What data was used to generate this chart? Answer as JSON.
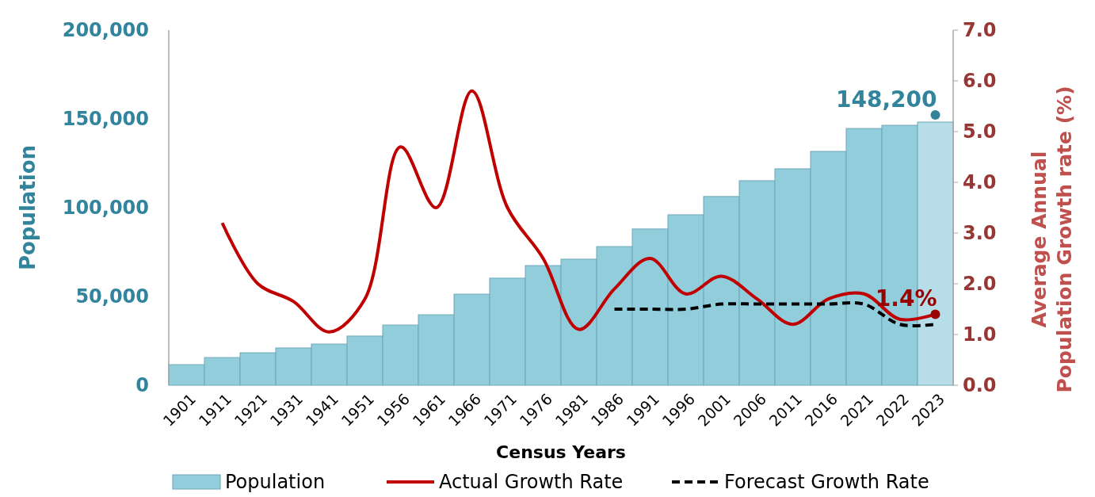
{
  "chart_data": {
    "type": "bar",
    "xlabel": "Census Years",
    "ylabel": "Population",
    "y2label": "Average Annual Population Growth rate (%)",
    "categories": [
      "1901",
      "1911",
      "1921",
      "1931",
      "1941",
      "1951",
      "1956",
      "1961",
      "1966",
      "1971",
      "1976",
      "1981",
      "1986",
      "1991",
      "1996",
      "2001",
      "2006",
      "2011",
      "2016",
      "2021",
      "2022",
      "2023"
    ],
    "series": [
      {
        "name": "Population",
        "color": "#92cddc",
        "colors": [
          "#92cddc",
          "#92cddc",
          "#92cddc",
          "#92cddc",
          "#92cddc",
          "#92cddc",
          "#92cddc",
          "#92cddc",
          "#92cddc",
          "#92cddc",
          "#92cddc",
          "#92cddc",
          "#92cddc",
          "#92cddc",
          "#92cddc",
          "#92cddc",
          "#92cddc",
          "#92cddc",
          "#92cddc",
          "#92cddc",
          "#92cddc",
          "#b7dee8"
        ],
        "values": [
          11600,
          15600,
          18300,
          21000,
          23200,
          27700,
          33900,
          39700,
          51300,
          60300,
          67400,
          71000,
          78100,
          88000,
          96000,
          106300,
          115200,
          121900,
          131700,
          144600,
          146400,
          148200
        ]
      },
      {
        "name": "Actual Growth Rate",
        "type": "line",
        "axis": "y2",
        "color": "#c00000",
        "line_style": "solid",
        "values": [
          null,
          3.2,
          2.0,
          1.65,
          1.05,
          1.7,
          4.7,
          3.5,
          5.8,
          3.5,
          2.5,
          1.1,
          1.9,
          2.5,
          1.8,
          2.15,
          1.7,
          1.2,
          1.7,
          1.8,
          1.3,
          1.4
        ]
      },
      {
        "name": "Forecast Growth Rate",
        "type": "line",
        "axis": "y2",
        "color": "#000000",
        "line_style": "dashed",
        "values": [
          null,
          null,
          null,
          null,
          null,
          null,
          null,
          null,
          null,
          null,
          null,
          null,
          1.5,
          1.5,
          1.5,
          1.6,
          1.6,
          1.6,
          1.6,
          1.6,
          1.2,
          1.2
        ]
      }
    ],
    "ylim": [
      0,
      200000
    ],
    "yticks": [
      {
        "value": 0,
        "label": "0"
      },
      {
        "value": 50000,
        "label": "50,000"
      },
      {
        "value": 100000,
        "label": "100,000"
      },
      {
        "value": 150000,
        "label": "150,000"
      },
      {
        "value": 200000,
        "label": "200,000"
      }
    ],
    "y2lim": [
      0,
      7
    ],
    "y2ticks": [
      {
        "value": 0,
        "label": "0.0"
      },
      {
        "value": 1,
        "label": "1.0"
      },
      {
        "value": 2,
        "label": "2.0"
      },
      {
        "value": 3,
        "label": "3.0"
      },
      {
        "value": 4,
        "label": "4.0"
      },
      {
        "value": 5,
        "label": "5.0"
      },
      {
        "value": 6,
        "label": "6.0"
      },
      {
        "value": 7,
        "label": "7.0"
      }
    ],
    "annotations": [
      {
        "text": "148,200",
        "x": "2023",
        "y": 148200
      },
      "1.4%"
    ],
    "legend": "bottom",
    "grid": false
  }
}
